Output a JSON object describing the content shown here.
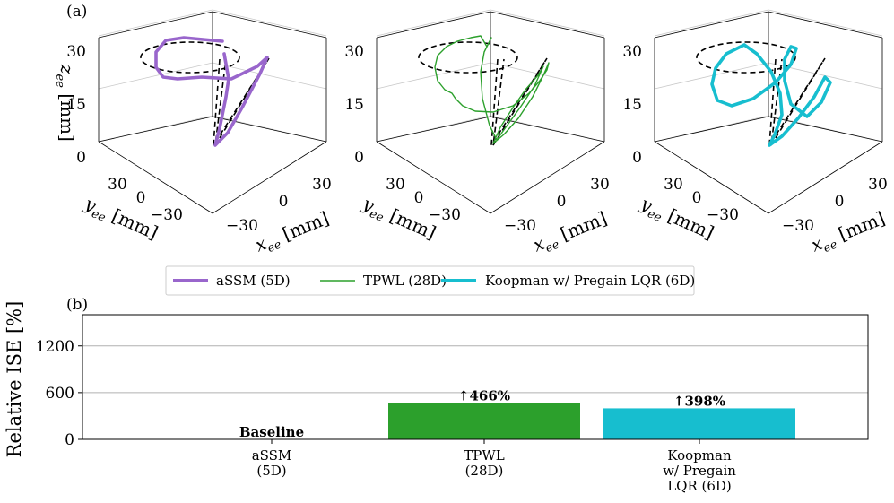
{
  "panel_a_label": "(a)",
  "panel_b_label": "(b)",
  "colors": {
    "assm": "#9966cc",
    "tpwl": "#2ca02c",
    "koopman": "#17becf",
    "reference": "#000000"
  },
  "chart_data": [
    {
      "type": "line",
      "panel": "(a)",
      "projection": "3d",
      "subplots": 3,
      "axes": {
        "z": {
          "label_parts": [
            "z",
            "ee",
            "[mm]"
          ],
          "ticks": [
            "0",
            "15",
            "30"
          ]
        },
        "y": {
          "label_parts": [
            "y",
            "ee",
            "[mm]"
          ],
          "ticks": [
            "30",
            "0",
            "−30"
          ]
        },
        "x": {
          "label_parts": [
            "x",
            "ee",
            "[mm]"
          ],
          "ticks": [
            "−30",
            "0",
            "30"
          ]
        }
      },
      "series": [
        {
          "name": "aSSM (5D)",
          "color": "#9966cc",
          "linewidth": "thick"
        },
        {
          "name": "TPWL (28D)",
          "color": "#2ca02c",
          "linewidth": "thin"
        },
        {
          "name": "Koopman w/ Pregain LQR (6D)",
          "color": "#17becf",
          "linewidth": "thick"
        }
      ],
      "reference": {
        "color": "#000000",
        "style": "dashed"
      }
    },
    {
      "type": "bar",
      "panel": "(b)",
      "ylabel": "Relative ISE [%]",
      "yticks": [
        0,
        600,
        1200
      ],
      "ylim": [
        0,
        1600
      ],
      "grid": "y",
      "categories": [
        [
          "aSSM",
          "(5D)"
        ],
        [
          "TPWL",
          "(28D)"
        ],
        [
          "Koopman",
          "w/ Pregain",
          "LQR (6D)"
        ]
      ],
      "values": [
        0,
        466,
        398
      ],
      "colors": [
        "#9966cc",
        "#2ca02c",
        "#17becf"
      ],
      "annotations": [
        "Baseline",
        "↑466%",
        "↑398%"
      ]
    }
  ]
}
